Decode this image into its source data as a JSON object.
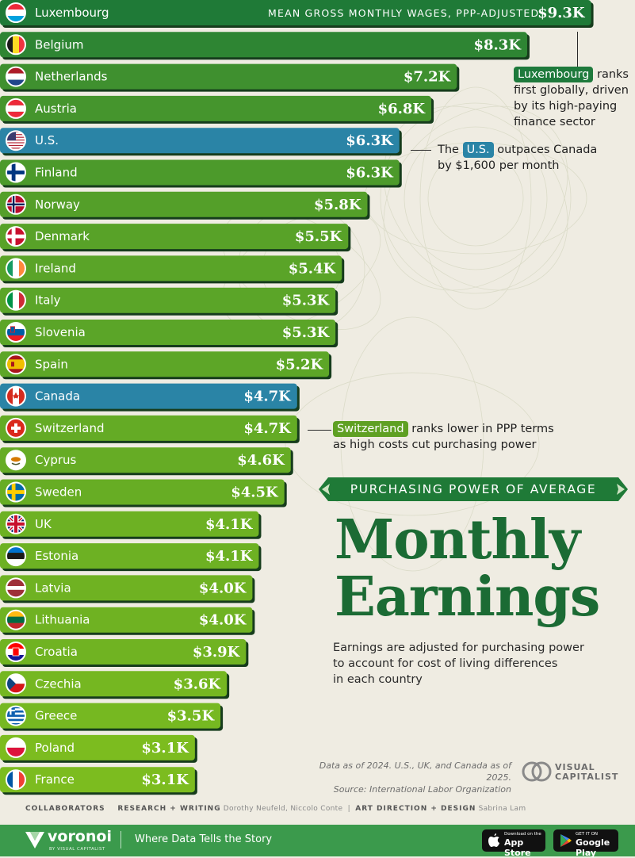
{
  "chart_data": {
    "type": "bar",
    "orientation": "horizontal",
    "title": "Monthly Earnings",
    "subtitle_banner": "PURCHASING POWER OF AVERAGE",
    "value_caption": "MEAN GROSS MONTHLY WAGES, PPP-ADJUSTED",
    "categories": [
      "Luxembourg",
      "Belgium",
      "Netherlands",
      "Austria",
      "U.S.",
      "Finland",
      "Norway",
      "Denmark",
      "Ireland",
      "Italy",
      "Slovenia",
      "Spain",
      "Canada",
      "Switzerland",
      "Cyprus",
      "Sweden",
      "UK",
      "Estonia",
      "Latvia",
      "Lithuania",
      "Croatia",
      "Czechia",
      "Greece",
      "Poland",
      "France"
    ],
    "values": [
      9.3,
      8.3,
      7.2,
      6.8,
      6.3,
      6.3,
      5.8,
      5.5,
      5.4,
      5.3,
      5.3,
      5.2,
      4.7,
      4.7,
      4.6,
      4.5,
      4.1,
      4.1,
      4.0,
      4.0,
      3.9,
      3.6,
      3.5,
      3.1,
      3.1
    ],
    "value_labels": [
      "$9.3K",
      "$8.3K",
      "$7.2K",
      "$6.8K",
      "$6.3K",
      "$6.3K",
      "$5.8K",
      "$5.5K",
      "$5.4K",
      "$5.3K",
      "$5.3K",
      "$5.2K",
      "$4.7K",
      "$4.7K",
      "$4.6K",
      "$4.5K",
      "$4.1K",
      "$4.1K",
      "$4.0K",
      "$4.0K",
      "$3.9K",
      "$3.6K",
      "$3.5K",
      "$3.1K",
      "$3.1K"
    ],
    "unit": "USD thousands per month",
    "highlighted": [
      "U.S.",
      "Canada"
    ],
    "colors": {
      "dark_green": "#1f7a37",
      "light_green": "#7cbc1f",
      "highlight_blue": "#2a84a6",
      "bar_border": "#163c1c",
      "title_green": "#1b6b34"
    },
    "flag_icons": [
      "luxembourg-flag",
      "belgium-flag",
      "netherlands-flag",
      "austria-flag",
      "us-flag",
      "finland-flag",
      "norway-flag",
      "denmark-flag",
      "ireland-flag",
      "italy-flag",
      "slovenia-flag",
      "spain-flag",
      "canada-flag",
      "switzerland-flag",
      "cyprus-flag",
      "sweden-flag",
      "uk-flag",
      "estonia-flag",
      "latvia-flag",
      "lithuania-flag",
      "croatia-flag",
      "czechia-flag",
      "greece-flag",
      "poland-flag",
      "france-flag"
    ]
  },
  "annotations": {
    "lux": {
      "highlight": "Luxembourg",
      "text1": " ranks",
      "text2": "first globally, driven",
      "text3": "by its high-paying",
      "text4": "finance sector"
    },
    "us": {
      "pre": "The ",
      "highlight": "U.S.",
      "post": " outpaces Canada",
      "line2": "by $1,600 per month"
    },
    "swiss": {
      "highlight": "Switzerland",
      "post": " ranks lower in PPP terms",
      "line2": "as high costs cut purchasing power"
    }
  },
  "title": {
    "banner": "PURCHASING POWER OF AVERAGE",
    "line1": "Monthly",
    "line2": "Earnings"
  },
  "description": [
    "Earnings are adjusted for purchasing power",
    "to account for cost of living differences",
    "in each country"
  ],
  "source": {
    "line1": "Data as of 2024. U.S., UK, and Canada as of 2025.",
    "line2": "Source: International Labor Organization"
  },
  "brand": {
    "vc_line1": "VISUAL",
    "vc_line2": "CAPITALIST",
    "voronoi": "voronoi",
    "voronoi_sub": "BY VISUAL CAPITALIST",
    "tagline": "Where Data Tells the Story",
    "app_store_small": "Download on the",
    "app_store": "App Store",
    "play_small": "GET IT ON",
    "play": "Google Play"
  },
  "collaborators": {
    "label": "COLLABORATORS",
    "rw_label": "RESEARCH + WRITING",
    "rw_names": "Dorothy Neufeld, Niccolo Conte",
    "ad_label": "ART DIRECTION + DESIGN",
    "ad_names": "Sabrina Lam"
  }
}
